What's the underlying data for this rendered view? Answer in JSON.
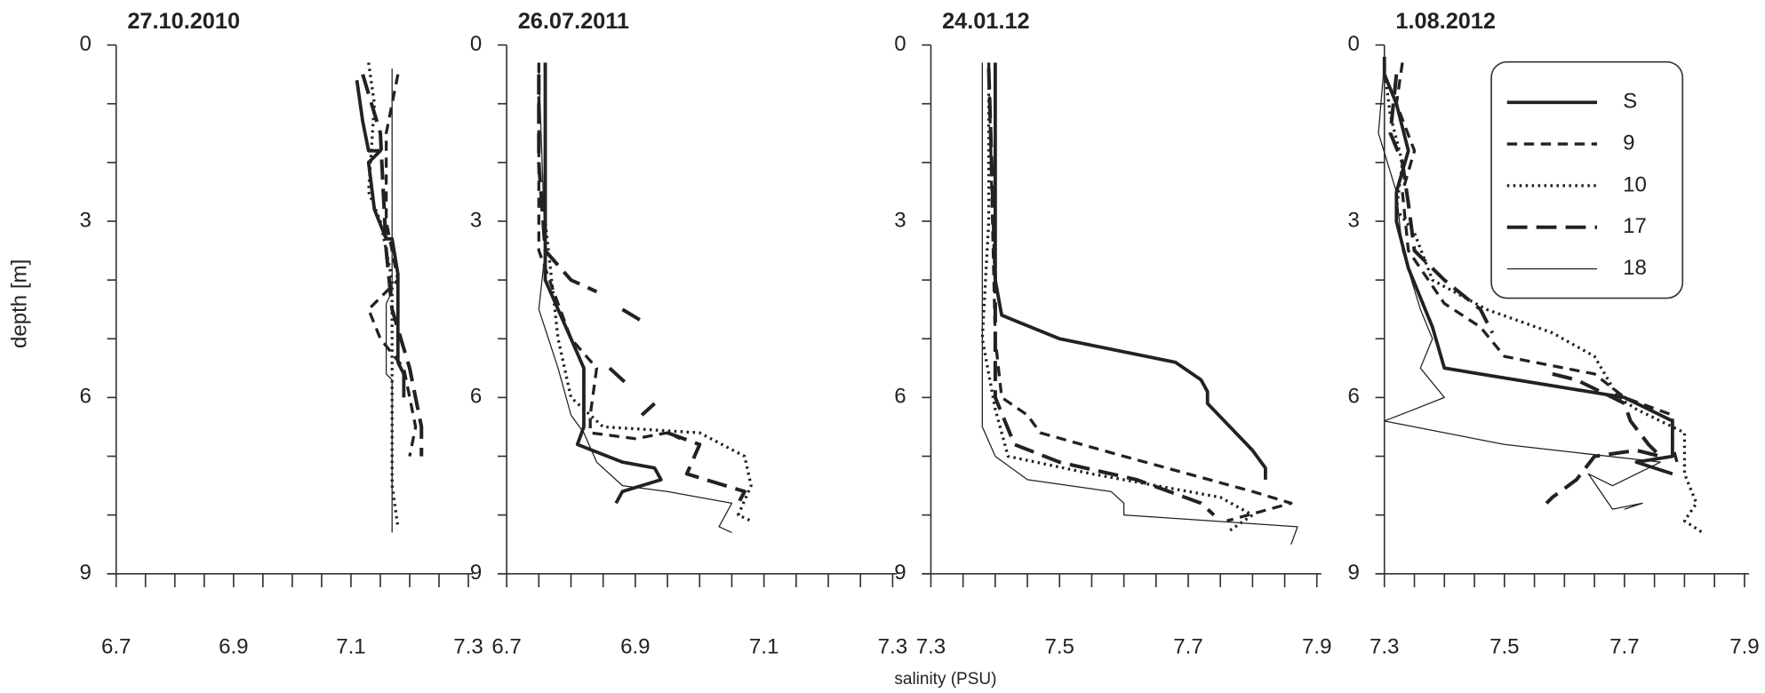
{
  "xlabel": "salinity (PSU)",
  "ylabel": "depth [m]",
  "chart_data": [
    {
      "type": "line",
      "title": "27.10.2010",
      "legend": false,
      "xlim": [
        6.7,
        7.3
      ],
      "xticks": [
        6.7,
        6.9,
        7.1,
        7.3
      ],
      "xminorticks": [
        6.75,
        6.8,
        6.85,
        6.95,
        7.0,
        7.05,
        7.15,
        7.2,
        7.25
      ],
      "ylim": [
        0,
        9
      ],
      "yticks": [
        0,
        3,
        6,
        9
      ],
      "yminorticks": [
        1,
        2,
        4,
        5,
        7,
        8
      ],
      "y_inverted": true,
      "series": [
        {
          "name": "S",
          "color": "#222",
          "linestyle": "solid",
          "x": [
            7.11,
            7.12,
            7.13,
            7.15,
            7.13,
            7.14,
            7.16,
            7.17,
            7.18,
            7.18,
            7.19,
            7.19
          ],
          "values": [
            0.6,
            1.3,
            1.8,
            1.8,
            2.0,
            2.8,
            3.3,
            3.3,
            3.9,
            5.4,
            5.6,
            6.0
          ]
        },
        {
          "name": "9",
          "color": "#222",
          "linestyle": "dashed",
          "x": [
            7.18,
            7.16,
            7.16,
            7.18,
            7.13,
            7.15,
            7.19,
            7.21,
            7.2
          ],
          "values": [
            0.5,
            1.5,
            3.0,
            4.0,
            4.5,
            5.0,
            5.5,
            6.5,
            7.0
          ]
        },
        {
          "name": "10",
          "color": "#222",
          "linestyle": "dotted",
          "x": [
            7.13,
            7.14,
            7.13,
            7.15,
            7.17,
            7.17,
            7.17,
            7.18
          ],
          "values": [
            0.3,
            1.0,
            2.5,
            3.0,
            4.0,
            6.0,
            7.5,
            8.2
          ]
        },
        {
          "name": "17",
          "color": "#222",
          "linestyle": "long-dashed",
          "x": [
            7.12,
            7.15,
            7.16,
            7.17,
            7.2,
            7.22,
            7.22
          ],
          "values": [
            0.5,
            1.5,
            3.5,
            4.5,
            5.5,
            6.5,
            7.0
          ]
        },
        {
          "name": "18",
          "color": "#222",
          "linestyle": "thin",
          "x": [
            7.17,
            7.17,
            7.16,
            7.16,
            7.17,
            7.17
          ],
          "values": [
            0.4,
            4.2,
            4.4,
            5.6,
            5.7,
            8.3
          ]
        }
      ]
    },
    {
      "type": "line",
      "title": "26.07.2011",
      "legend": false,
      "xlim": [
        6.7,
        7.3
      ],
      "xticks": [
        6.7,
        6.9,
        7.1,
        7.3
      ],
      "xminorticks": [
        6.75,
        6.8,
        6.85,
        6.95,
        7.0,
        7.05,
        7.15,
        7.2,
        7.25
      ],
      "ylim": [
        0,
        9
      ],
      "yticks": [
        0,
        3,
        6,
        9
      ],
      "yminorticks": [
        1,
        2,
        4,
        5,
        7,
        8
      ],
      "y_inverted": true,
      "series": [
        {
          "name": "S",
          "color": "#222",
          "linestyle": "solid",
          "x": [
            6.76,
            6.76,
            6.76,
            6.78,
            6.8,
            6.82,
            6.82,
            6.82,
            6.81,
            6.88,
            6.93,
            6.94,
            6.88,
            6.87
          ],
          "values": [
            0.3,
            1.0,
            4.0,
            4.5,
            5.0,
            5.5,
            6.3,
            6.5,
            6.8,
            7.1,
            7.2,
            7.4,
            7.6,
            7.8
          ]
        },
        {
          "name": "9",
          "color": "#222",
          "linestyle": "dashed",
          "x": [
            6.75,
            6.75,
            6.78,
            6.8,
            6.84,
            6.83,
            6.83,
            6.9,
            6.95,
            6.97
          ],
          "values": [
            0.3,
            3.5,
            4.4,
            5.0,
            5.5,
            6.3,
            6.6,
            6.7,
            6.6,
            6.7
          ]
        },
        {
          "name": "10",
          "color": "#222",
          "linestyle": "dotted",
          "x": [
            6.76,
            6.76,
            6.78,
            6.8,
            6.85,
            7.0,
            7.07,
            7.08,
            7.06,
            7.08
          ],
          "values": [
            0.3,
            3.0,
            5.0,
            6.0,
            6.5,
            6.6,
            7.0,
            7.5,
            8.0,
            8.1
          ]
        },
        {
          "name": "17",
          "color": "#222",
          "linestyle": "long-dashed",
          "x": [
            6.75,
            6.75,
            6.76,
            6.8,
            6.84,
            null,
            6.88,
            6.91,
            null,
            6.86,
            6.89,
            null,
            6.91,
            6.93,
            null,
            6.95,
            7.0,
            6.98,
            7.07,
            7.06
          ],
          "values": [
            0.5,
            2.0,
            3.5,
            4.0,
            4.2,
            null,
            4.5,
            4.7,
            null,
            5.5,
            5.8,
            null,
            6.3,
            6.1,
            null,
            6.6,
            6.8,
            7.3,
            7.6,
            7.8
          ]
        },
        {
          "name": "18",
          "color": "#222",
          "linestyle": "thin",
          "x": [
            6.75,
            6.76,
            6.75,
            6.78,
            6.8,
            6.82,
            6.84,
            6.88,
            6.95,
            7.05,
            7.03,
            7.05
          ],
          "values": [
            0.4,
            3.5,
            4.5,
            5.5,
            6.3,
            6.6,
            7.1,
            7.5,
            7.6,
            7.8,
            8.2,
            8.3
          ]
        }
      ]
    },
    {
      "type": "line",
      "title": "24.01.12",
      "legend": false,
      "xlim": [
        7.3,
        7.9
      ],
      "xticks": [
        7.3,
        7.5,
        7.7,
        7.9
      ],
      "xminorticks": [
        7.35,
        7.4,
        7.45,
        7.55,
        7.6,
        7.65,
        7.75,
        7.8,
        7.85
      ],
      "ylim": [
        0,
        9
      ],
      "yticks": [
        0,
        3,
        6,
        9
      ],
      "yminorticks": [
        1,
        2,
        4,
        5,
        7,
        8
      ],
      "y_inverted": true,
      "series": [
        {
          "name": "S",
          "color": "#222",
          "linestyle": "solid",
          "x": [
            7.4,
            7.4,
            7.41,
            7.5,
            7.68,
            7.72,
            7.73,
            7.73,
            7.8,
            7.82,
            7.82
          ],
          "values": [
            0.3,
            4.0,
            4.6,
            5.0,
            5.4,
            5.7,
            5.9,
            6.1,
            6.9,
            7.2,
            7.4
          ]
        },
        {
          "name": "9",
          "color": "#222",
          "linestyle": "dashed",
          "x": [
            7.39,
            7.4,
            7.41,
            7.45,
            7.47,
            7.6,
            7.8,
            7.86,
            7.76
          ],
          "values": [
            0.3,
            5.0,
            6.0,
            6.3,
            6.6,
            7.0,
            7.6,
            7.8,
            8.1
          ]
        },
        {
          "name": "10",
          "color": "#222",
          "linestyle": "dotted",
          "x": [
            7.39,
            7.39,
            7.38,
            7.4,
            7.42,
            7.55,
            7.75,
            7.8,
            7.76
          ],
          "values": [
            0.3,
            3.0,
            5.0,
            6.2,
            7.0,
            7.3,
            7.7,
            8.0,
            8.3
          ]
        },
        {
          "name": "17",
          "color": "#222",
          "linestyle": "long-dashed",
          "x": [
            7.39,
            7.4,
            7.4,
            7.43,
            7.5,
            7.62,
            7.72,
            7.74
          ],
          "values": [
            0.4,
            4.0,
            6.0,
            6.8,
            7.1,
            7.4,
            7.8,
            8.0
          ]
        },
        {
          "name": "18",
          "color": "#222",
          "linestyle": "thin",
          "x": [
            7.38,
            7.38,
            7.4,
            7.45,
            7.58,
            7.6,
            7.6,
            7.87,
            7.86
          ],
          "values": [
            0.3,
            6.5,
            7.0,
            7.4,
            7.6,
            7.8,
            8.0,
            8.2,
            8.5
          ]
        }
      ]
    },
    {
      "type": "line",
      "title": "1.08.2012",
      "legend": "upper right",
      "xlim": [
        7.3,
        7.9
      ],
      "xticks": [
        7.3,
        7.5,
        7.7,
        7.9
      ],
      "xminorticks": [
        7.35,
        7.4,
        7.45,
        7.55,
        7.6,
        7.65,
        7.75,
        7.8,
        7.85
      ],
      "ylim": [
        0,
        9
      ],
      "yticks": [
        0,
        3,
        6,
        9
      ],
      "yminorticks": [
        1,
        2,
        4,
        5,
        7,
        8
      ],
      "y_inverted": true,
      "series": [
        {
          "name": "S",
          "color": "#222",
          "linestyle": "solid",
          "x": [
            7.3,
            7.3,
            7.32,
            7.34,
            7.32,
            7.32,
            7.34,
            7.38,
            7.4,
            7.7,
            7.78,
            7.78,
            7.72,
            7.78
          ],
          "values": [
            0.2,
            0.5,
            1.0,
            1.8,
            2.5,
            3.0,
            3.8,
            4.8,
            5.5,
            6.0,
            6.4,
            7.0,
            7.1,
            7.3
          ]
        },
        {
          "name": "9",
          "color": "#222",
          "linestyle": "dashed",
          "x": [
            7.33,
            7.32,
            7.35,
            7.33,
            7.34,
            7.4,
            7.46,
            7.5,
            7.6,
            7.65,
            7.7,
            7.78,
            7.78,
            7.79
          ],
          "values": [
            0.3,
            1.0,
            1.8,
            2.5,
            3.5,
            4.4,
            4.8,
            5.3,
            5.5,
            5.6,
            6.0,
            6.3,
            6.8,
            7.2
          ]
        },
        {
          "name": "10",
          "color": "#222",
          "linestyle": "dotted",
          "x": [
            7.3,
            7.31,
            7.33,
            7.32,
            7.35,
            7.38,
            7.47,
            7.58,
            7.65,
            7.69,
            7.72,
            7.8,
            7.8,
            7.82,
            7.8,
            7.83
          ],
          "values": [
            0.4,
            1.2,
            2.0,
            2.8,
            3.2,
            4.0,
            4.5,
            4.9,
            5.3,
            6.0,
            6.2,
            6.6,
            7.3,
            7.8,
            8.1,
            8.3
          ]
        },
        {
          "name": "17",
          "color": "#222",
          "linestyle": "long-dashed",
          "x": [
            7.32,
            7.31,
            7.33,
            7.34,
            7.35,
            7.4,
            7.46,
            7.48,
            null,
            7.58,
            7.62,
            7.68,
            7.7,
            7.71,
            7.74,
            7.76,
            7.72,
            7.65,
            7.62,
            7.58,
            7.57
          ],
          "values": [
            0.5,
            1.5,
            2.0,
            2.7,
            3.5,
            4.0,
            4.5,
            4.9,
            null,
            5.6,
            5.7,
            6.0,
            6.1,
            6.4,
            6.8,
            7.0,
            6.9,
            7.0,
            7.4,
            7.7,
            7.8
          ]
        },
        {
          "name": "18",
          "color": "#222",
          "linestyle": "thin",
          "x": [
            7.3,
            7.29,
            7.32,
            7.33,
            7.36,
            7.38,
            7.36,
            7.4,
            7.35,
            7.3,
            7.5,
            7.76,
            7.68,
            7.64,
            7.68,
            7.73,
            7.7
          ],
          "values": [
            0.3,
            1.5,
            2.5,
            3.5,
            4.5,
            5.0,
            5.5,
            6.0,
            6.2,
            6.4,
            6.8,
            7.1,
            7.5,
            7.3,
            7.9,
            7.8,
            7.9
          ]
        }
      ]
    }
  ]
}
